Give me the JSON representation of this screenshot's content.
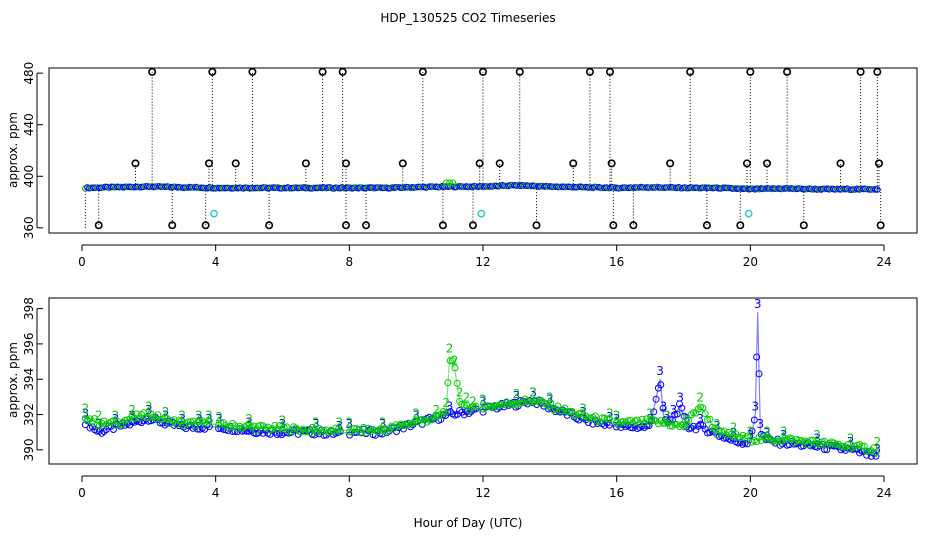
{
  "figure": {
    "title": "HDP_130525  CO2 Timeseries",
    "xlabel": "Hour of Day (UTC)"
  },
  "chart_data": [
    {
      "type": "scatter",
      "title": "HDP_130525  CO2 Timeseries",
      "xlabel": "Hour of Day (UTC)",
      "ylabel": "approx. ppm",
      "xlim": [
        -2,
        25
      ],
      "ylim": [
        356,
        484
      ],
      "xticks": [
        0,
        4,
        8,
        12,
        16,
        20,
        24
      ],
      "yticks": [
        360,
        400,
        440,
        480
      ],
      "baseline": {
        "description": "main CO2 trace (blue/green circles, near-flat)",
        "x": [
          0.1,
          1,
          2,
          3,
          4,
          5,
          6,
          7,
          8,
          9,
          10,
          11,
          12,
          13,
          14,
          15,
          16,
          17,
          18,
          19,
          20,
          21,
          22,
          23,
          23.8
        ],
        "y": [
          391,
          391.5,
          392,
          391.5,
          391,
          391,
          391,
          391,
          391,
          391,
          391.5,
          392,
          392,
          393,
          392,
          391.5,
          391,
          391.5,
          391,
          391,
          390,
          390.5,
          390,
          390,
          390
        ]
      },
      "spikes": {
        "description": "black circle outliers with dotted vertical lines",
        "x": [
          1.6,
          2.1,
          3.8,
          3.9,
          4.6,
          5.1,
          6.7,
          7.2,
          7.8,
          7.9,
          9.6,
          10.2,
          11.9,
          12.0,
          12.5,
          13.1,
          14.7,
          15.2,
          15.8,
          15.85,
          17.6,
          18.2,
          19.9,
          20.0,
          20.5,
          21.1,
          22.7,
          23.3,
          23.8,
          23.85,
          0.5,
          2.7,
          3.7,
          5.6,
          7.9,
          8.5,
          10.8,
          11.7,
          13.6,
          15.9,
          16.5,
          18.7,
          19.7,
          21.6,
          23.9
        ],
        "y": [
          410,
          481,
          410,
          481,
          410,
          481,
          410,
          481,
          481,
          410,
          410,
          481,
          410,
          481,
          410,
          481,
          410,
          481,
          481,
          410,
          410,
          481,
          410,
          481,
          410,
          481,
          410,
          481,
          481,
          410,
          362,
          362,
          362,
          362,
          362,
          362,
          362,
          362,
          362,
          362,
          362,
          362,
          362,
          362,
          362
        ]
      },
      "cyan_markers": {
        "x": [
          3.95,
          11.95,
          19.95
        ],
        "y": [
          371,
          371,
          371
        ]
      }
    },
    {
      "type": "scatter",
      "title": "",
      "xlabel": "Hour of Day (UTC)",
      "ylabel": "approx. ppm",
      "xlim": [
        -2,
        25
      ],
      "ylim": [
        389.2,
        398.6
      ],
      "xticks": [
        0,
        4,
        8,
        12,
        16,
        20,
        24
      ],
      "yticks": [
        390,
        392,
        394,
        396,
        398
      ],
      "series": [
        {
          "name": "3",
          "color": "#0000ff",
          "x": [
            0.1,
            0.5,
            1.0,
            1.5,
            2.0,
            2.5,
            3.0,
            3.5,
            3.8,
            4.1,
            5.0,
            6.0,
            7.0,
            7.7,
            8.0,
            9.0,
            10.0,
            11.0,
            12.0,
            13.0,
            13.5,
            14.0,
            15.0,
            15.8,
            16.0,
            17.0,
            17.3,
            17.4,
            17.5,
            17.7,
            17.9,
            18.1,
            18.5,
            19.0,
            19.5,
            20.0,
            20.15,
            20.22,
            20.3,
            20.5,
            21.0,
            22.0,
            23.0,
            23.8
          ],
          "y": [
            391.6,
            391.0,
            391.3,
            391.5,
            391.8,
            391.5,
            391.3,
            391.3,
            391.3,
            391.3,
            391.1,
            391.0,
            391.0,
            390.9,
            391.0,
            391.0,
            391.5,
            392.0,
            392.3,
            392.6,
            392.8,
            392.4,
            391.7,
            391.4,
            391.3,
            391.3,
            394.0,
            392.0,
            391.5,
            391.8,
            392.5,
            391.3,
            391.3,
            390.9,
            390.5,
            390.4,
            392.0,
            397.8,
            391.0,
            390.5,
            390.4,
            390.2,
            390.0,
            389.6
          ]
        },
        {
          "name": "2",
          "color": "#00cc00",
          "x": [
            0.1,
            0.5,
            1.0,
            1.5,
            2.0,
            2.5,
            3.0,
            3.5,
            3.8,
            4.1,
            5.0,
            6.0,
            7.0,
            7.7,
            8.0,
            9.0,
            10.0,
            10.6,
            10.9,
            11.0,
            11.15,
            11.3,
            11.5,
            11.7,
            12.0,
            13.0,
            13.5,
            14.0,
            15.0,
            15.8,
            16.0,
            17.0,
            17.5,
            18.0,
            18.5,
            19.0,
            19.5,
            20.0,
            20.5,
            21.0,
            22.0,
            23.0,
            23.8
          ],
          "y": [
            391.9,
            391.5,
            391.5,
            391.8,
            392.0,
            391.7,
            391.5,
            391.5,
            391.5,
            391.4,
            391.3,
            391.2,
            391.1,
            391.1,
            391.1,
            391.1,
            391.6,
            391.8,
            392.2,
            395.3,
            394.6,
            392.8,
            392.5,
            392.3,
            392.4,
            392.7,
            392.8,
            392.5,
            391.9,
            391.6,
            391.5,
            391.6,
            391.5,
            391.3,
            392.5,
            391.0,
            390.8,
            390.6,
            390.6,
            390.6,
            390.4,
            390.2,
            390.0
          ]
        }
      ]
    }
  ]
}
